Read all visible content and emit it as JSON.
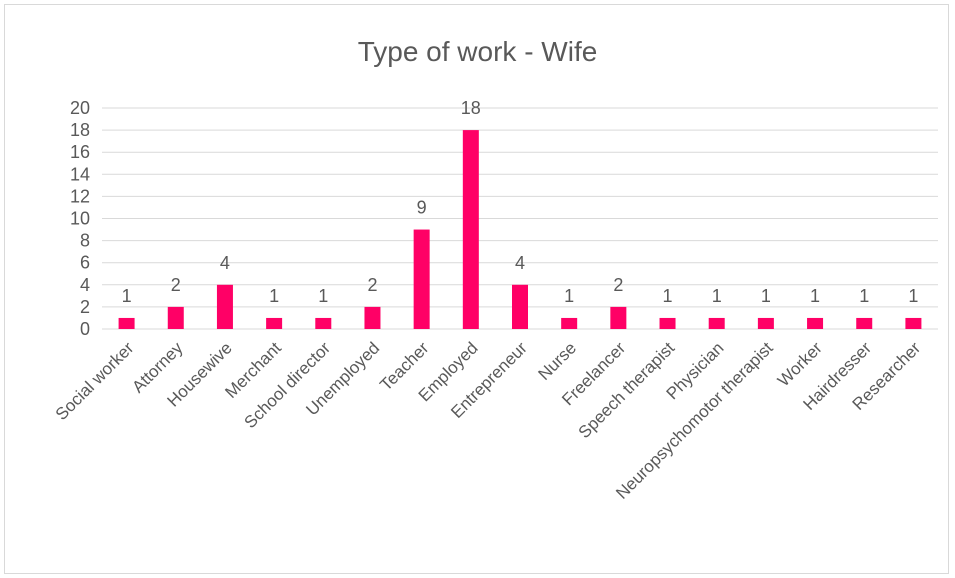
{
  "chart_data": {
    "type": "bar",
    "title": "Type of work - Wife",
    "xlabel": "",
    "ylabel": "",
    "categories": [
      "Social worker",
      "Attorney",
      "Housewive",
      "Merchant",
      "School director",
      "Unemployed",
      "Teacher",
      "Employed",
      "Entrepreneur",
      "Nurse",
      "Freelancer",
      "Speech therapist",
      "Physician",
      "Neuropsychomotor therapist",
      "Worker",
      "Hairdresser",
      "Researcher"
    ],
    "values": [
      1,
      2,
      4,
      1,
      1,
      2,
      9,
      18,
      4,
      1,
      2,
      1,
      1,
      1,
      1,
      1,
      1
    ],
    "ylim": [
      0,
      20
    ],
    "yticks": [
      0,
      2,
      4,
      6,
      8,
      10,
      12,
      14,
      16,
      18,
      20
    ],
    "grid": true,
    "legend": "none",
    "data_labels": true,
    "bar_color": "#ff0066",
    "gridline_color": "#d9d9d9",
    "text_color": "#595959"
  }
}
